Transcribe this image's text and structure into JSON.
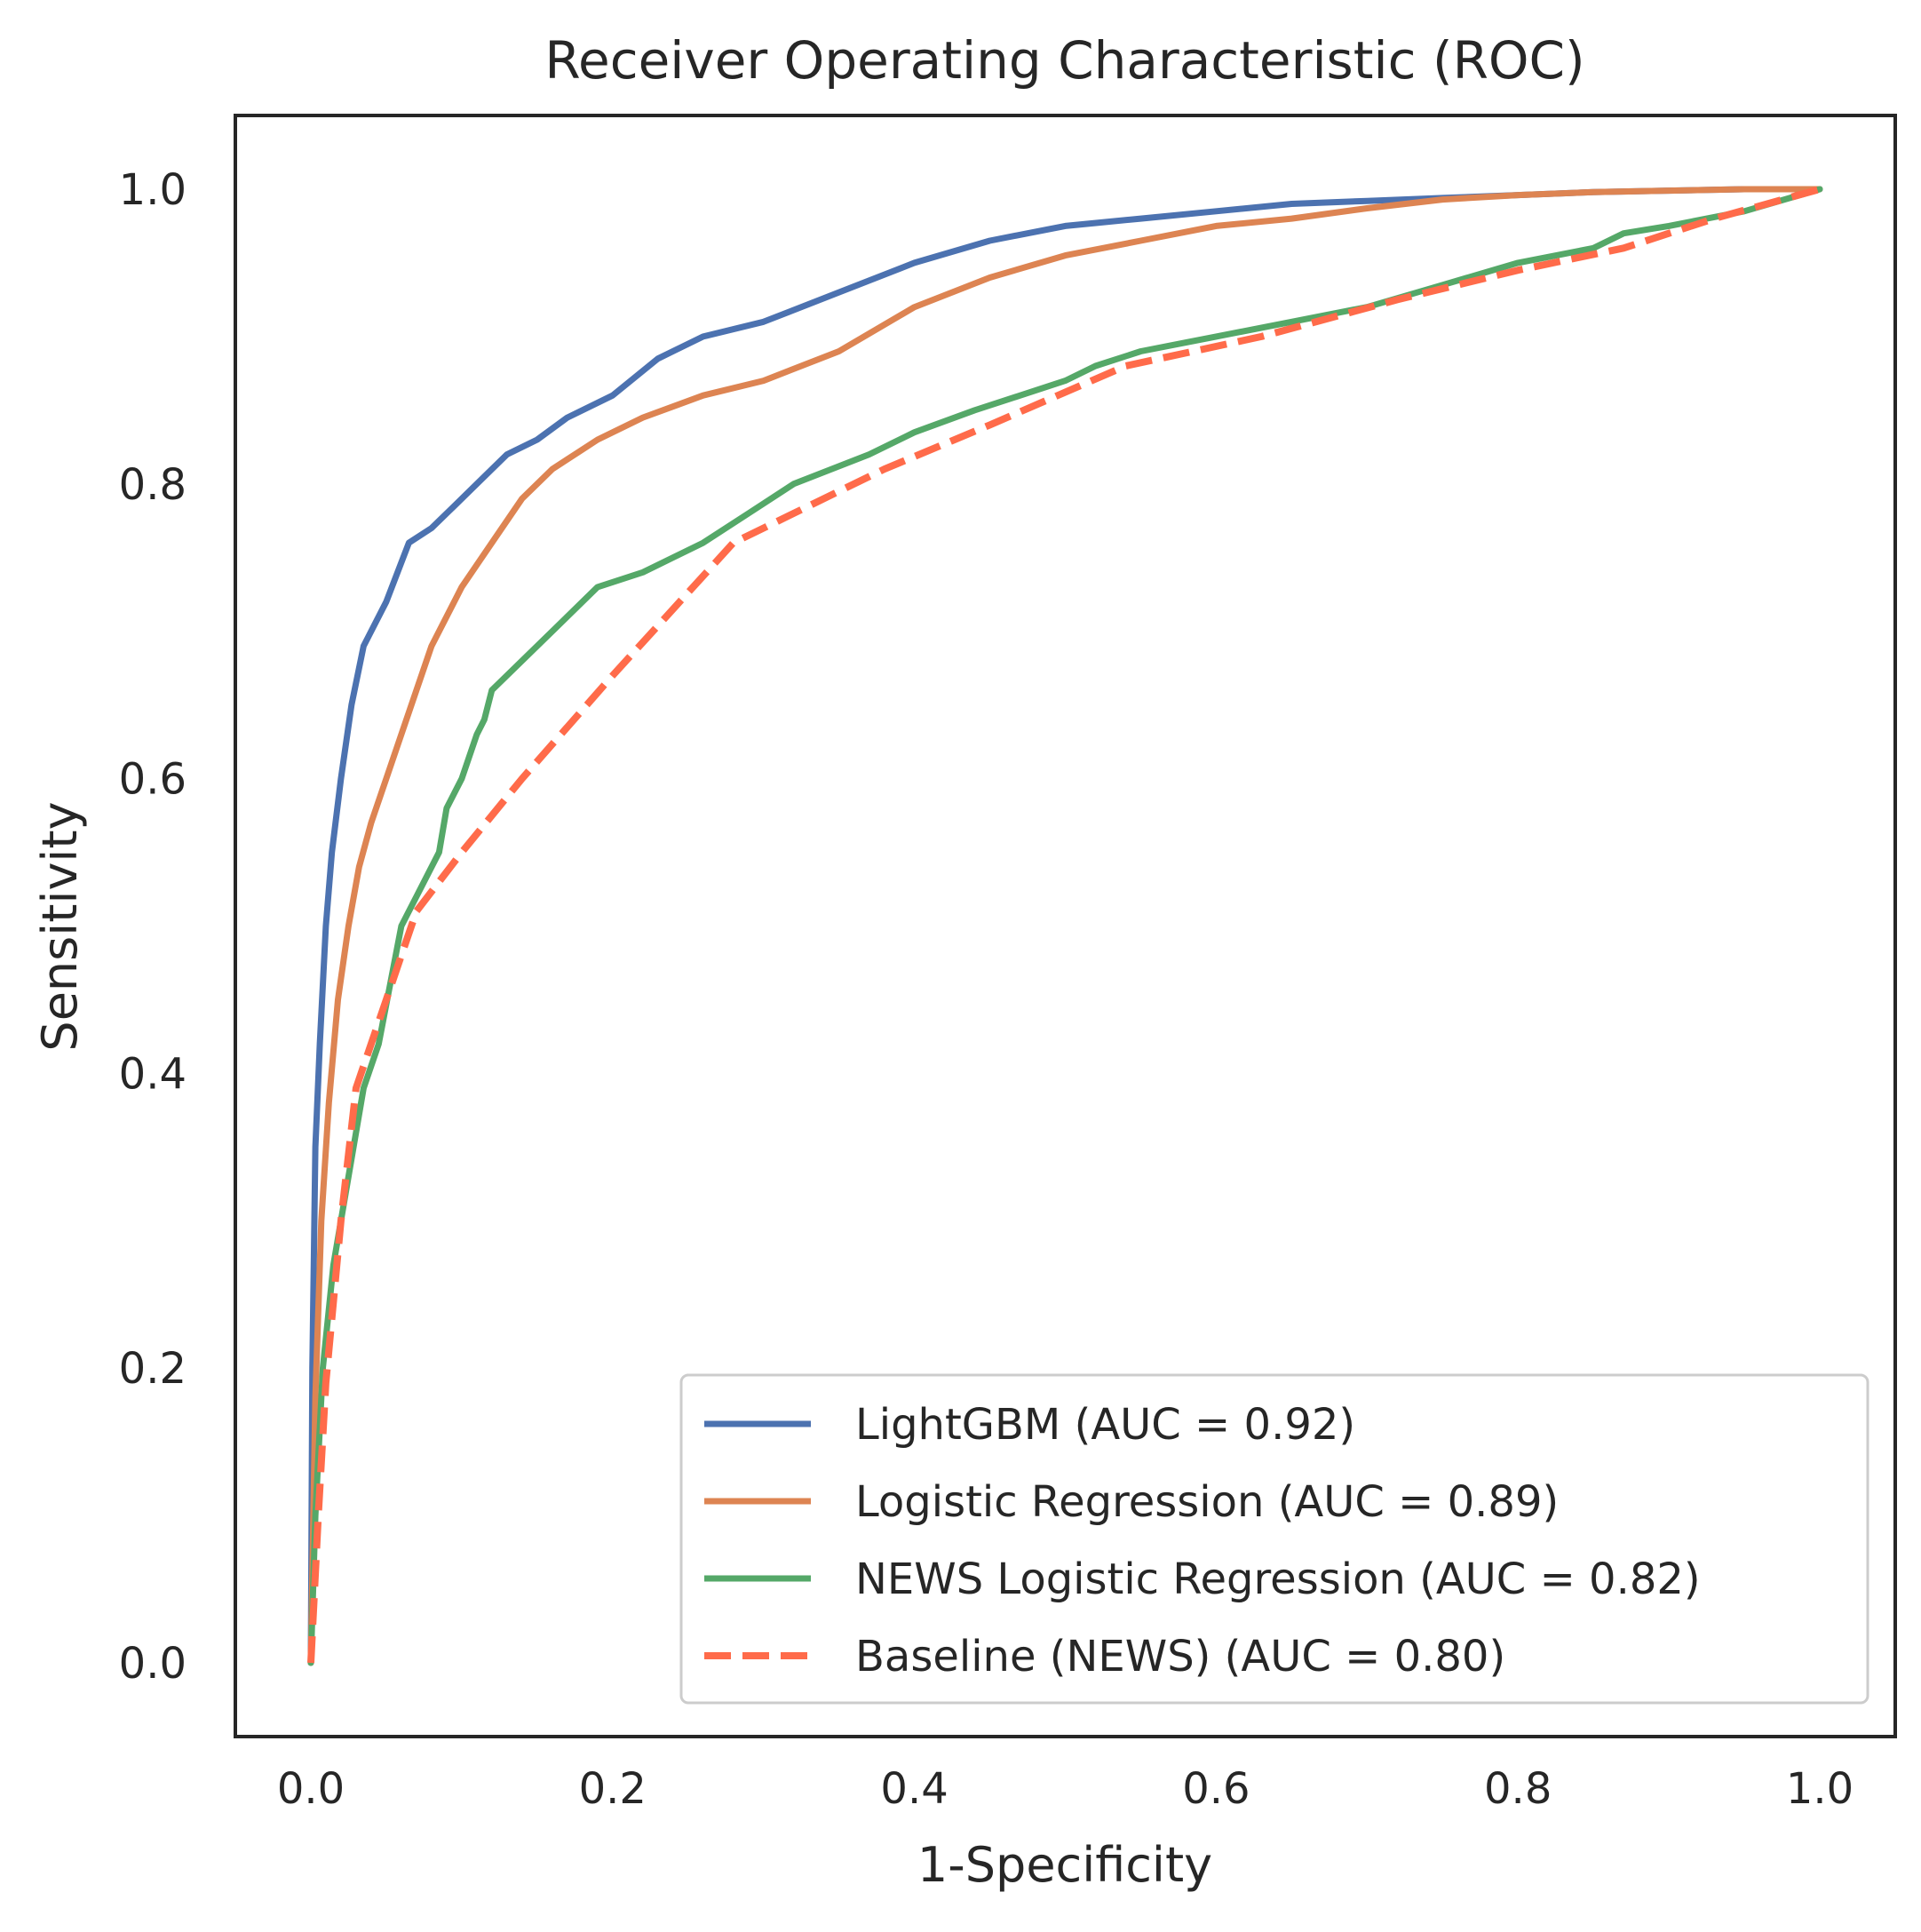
{
  "chart_data": {
    "type": "line",
    "title": "Receiver Operating Characteristic (ROC)",
    "xlabel": "1-Specificity",
    "ylabel": "Sensitivity",
    "xlim": [
      -0.05,
      1.05
    ],
    "ylim": [
      -0.05,
      1.05
    ],
    "xticks": [
      "0.0",
      "0.2",
      "0.4",
      "0.6",
      "0.8",
      "1.0"
    ],
    "yticks": [
      "0.0",
      "0.2",
      "0.4",
      "0.6",
      "0.8",
      "1.0"
    ],
    "grid": false,
    "legend_position": "lower-right",
    "series": [
      {
        "name": "LightGBM (AUC = 0.92)",
        "color": "#4c72b0",
        "style": "solid",
        "x": [
          0,
          0.001,
          0.003,
          0.006,
          0.01,
          0.014,
          0.02,
          0.027,
          0.035,
          0.04,
          0.05,
          0.065,
          0.08,
          0.095,
          0.11,
          0.13,
          0.15,
          0.17,
          0.2,
          0.23,
          0.26,
          0.3,
          0.35,
          0.4,
          0.45,
          0.5,
          0.55,
          0.6,
          0.65,
          0.7,
          0.75,
          0.8,
          0.85,
          0.9,
          0.95,
          1.0
        ],
        "y": [
          0,
          0.2,
          0.35,
          0.42,
          0.5,
          0.55,
          0.6,
          0.65,
          0.69,
          0.7,
          0.72,
          0.76,
          0.77,
          0.785,
          0.8,
          0.82,
          0.83,
          0.845,
          0.86,
          0.885,
          0.9,
          0.91,
          0.93,
          0.95,
          0.965,
          0.975,
          0.98,
          0.985,
          0.99,
          0.992,
          0.994,
          0.996,
          0.998,
          0.999,
          1.0,
          1.0
        ]
      },
      {
        "name": "Logistic Regression (AUC = 0.89)",
        "color": "#dd8452",
        "style": "solid",
        "x": [
          0,
          0.003,
          0.007,
          0.012,
          0.018,
          0.025,
          0.032,
          0.04,
          0.05,
          0.06,
          0.07,
          0.08,
          0.09,
          0.1,
          0.12,
          0.14,
          0.16,
          0.19,
          0.22,
          0.26,
          0.3,
          0.35,
          0.4,
          0.45,
          0.5,
          0.55,
          0.6,
          0.65,
          0.7,
          0.75,
          0.8,
          0.85,
          0.9,
          0.95,
          1.0
        ],
        "y": [
          0,
          0.18,
          0.3,
          0.38,
          0.45,
          0.5,
          0.54,
          0.57,
          0.6,
          0.63,
          0.66,
          0.69,
          0.71,
          0.73,
          0.76,
          0.79,
          0.81,
          0.83,
          0.845,
          0.86,
          0.87,
          0.89,
          0.92,
          0.94,
          0.955,
          0.965,
          0.975,
          0.98,
          0.987,
          0.993,
          0.996,
          0.998,
          0.999,
          1.0,
          1.0
        ]
      },
      {
        "name": "NEWS Logistic Regression (AUC = 0.82)",
        "color": "#55a868",
        "style": "solid",
        "x": [
          0,
          0.003,
          0.008,
          0.015,
          0.025,
          0.035,
          0.045,
          0.06,
          0.07,
          0.085,
          0.09,
          0.1,
          0.11,
          0.115,
          0.12,
          0.14,
          0.16,
          0.17,
          0.19,
          0.22,
          0.26,
          0.29,
          0.32,
          0.37,
          0.4,
          0.44,
          0.5,
          0.52,
          0.55,
          0.6,
          0.65,
          0.7,
          0.75,
          0.8,
          0.85,
          0.87,
          0.9,
          0.95,
          1.0
        ],
        "y": [
          0,
          0.1,
          0.2,
          0.27,
          0.33,
          0.39,
          0.42,
          0.5,
          0.52,
          0.55,
          0.58,
          0.6,
          0.63,
          0.64,
          0.66,
          0.68,
          0.7,
          0.71,
          0.73,
          0.74,
          0.76,
          0.78,
          0.8,
          0.82,
          0.835,
          0.85,
          0.87,
          0.88,
          0.89,
          0.9,
          0.91,
          0.92,
          0.935,
          0.95,
          0.96,
          0.97,
          0.975,
          0.985,
          1.0
        ]
      },
      {
        "name": "Baseline (NEWS) (AUC = 0.80)",
        "color": "#ff6b4a",
        "style": "dashed",
        "x": [
          0,
          0.005,
          0.01,
          0.02,
          0.03,
          0.04,
          0.05,
          0.07,
          0.1,
          0.14,
          0.2,
          0.28,
          0.38,
          0.45,
          0.54,
          0.63,
          0.72,
          0.8,
          0.87,
          0.93,
          1.0
        ],
        "y": [
          0,
          0.1,
          0.19,
          0.3,
          0.39,
          0.42,
          0.45,
          0.51,
          0.55,
          0.6,
          0.67,
          0.76,
          0.81,
          0.84,
          0.88,
          0.9,
          0.925,
          0.945,
          0.96,
          0.98,
          1.0
        ]
      }
    ]
  }
}
